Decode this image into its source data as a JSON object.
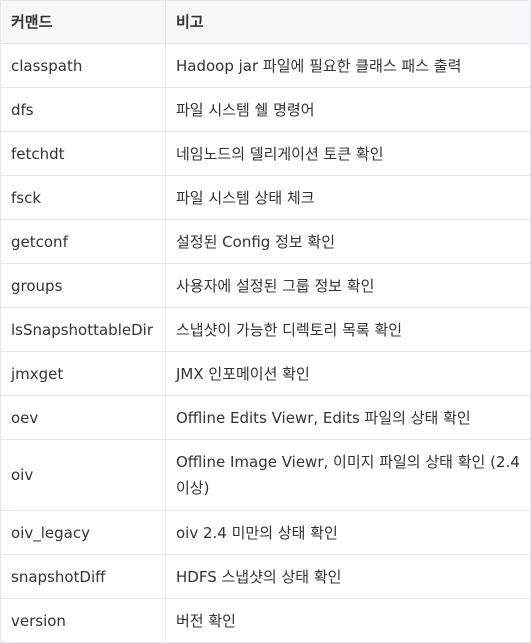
{
  "table": {
    "headers": [
      "커맨드",
      "비고"
    ],
    "rows": [
      {
        "command": "classpath",
        "note": "Hadoop jar 파일에 필요한 클래스 패스 출력"
      },
      {
        "command": "dfs",
        "note": "파일 시스템 쉘 명령어"
      },
      {
        "command": "fetchdt",
        "note": "네임노드의 델리게이션 토큰 확인"
      },
      {
        "command": "fsck",
        "note": "파일 시스템 상태 체크"
      },
      {
        "command": "getconf",
        "note": "설정된 Config 정보 확인"
      },
      {
        "command": "groups",
        "note": "사용자에 설정된 그룹 정보 확인"
      },
      {
        "command": "lsSnapshottableDir",
        "note": "스냅샷이 가능한 디렉토리 목록 확인"
      },
      {
        "command": "jmxget",
        "note": "JMX 인포메이션 확인"
      },
      {
        "command": "oev",
        "note": "Offline Edits Viewr, Edits 파일의 상태 확인"
      },
      {
        "command": "oiv",
        "note": "Offline Image Viewr, 이미지 파일의 상태 확인 (2.4 이상)"
      },
      {
        "command": "oiv_legacy",
        "note": "oiv 2.4 미만의 상태 확인"
      },
      {
        "command": "snapshotDiff",
        "note": "HDFS 스냅샷의 상태 확인"
      },
      {
        "command": "version",
        "note": "버전 확인"
      }
    ]
  }
}
